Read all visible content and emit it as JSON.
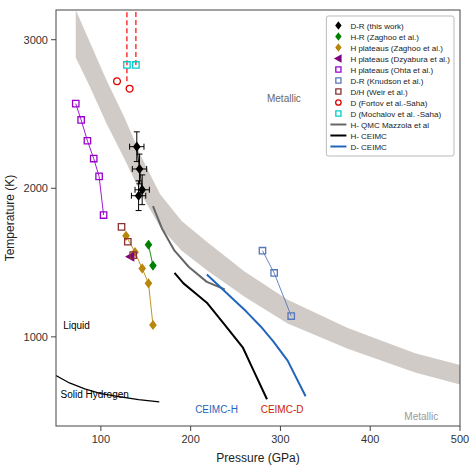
{
  "chart_data": {
    "type": "scatter",
    "xlabel": "Pressure (GPa)",
    "ylabel": "Temperature (K)",
    "xlim": [
      50,
      500
    ],
    "ylim": [
      400,
      3200
    ],
    "xticks": [
      100,
      200,
      300,
      400,
      500
    ],
    "yticks": [
      1000,
      2000,
      3000
    ],
    "grid": false,
    "legend": "upper right",
    "series": [
      {
        "name": "D-R (this work)",
        "type": "line",
        "marker": "diamond",
        "line_style": "solid",
        "color": "black",
        "x": [
          140,
          143,
          146,
          142
        ],
        "values": [
          2280,
          2130,
          1990,
          1950
        ],
        "xerr": [
          8,
          8,
          8,
          8
        ],
        "yerr": [
          100,
          100,
          100,
          100
        ]
      },
      {
        "name": "H-R (Zaghoo et al.)",
        "type": "line",
        "marker": "diamond",
        "line_style": "solid",
        "color": "#008000",
        "x": [
          153,
          158
        ],
        "values": [
          1620,
          1480
        ]
      },
      {
        "name": "H plateaus (Zaghoo et al.)",
        "type": "line",
        "marker": "diamond",
        "line_style": "solid",
        "color": "#b8860b",
        "x": [
          128,
          138,
          146,
          153,
          158
        ],
        "values": [
          1680,
          1570,
          1460,
          1360,
          1080
        ]
      },
      {
        "name": "H plateaus (Dzyabura et al.)",
        "type": "scatter",
        "marker": "triangle-left",
        "color": "#800080",
        "x": [
          133
        ],
        "values": [
          1540
        ]
      },
      {
        "name": "H plateaus (Ohta et al.)",
        "type": "line",
        "marker": "open-square",
        "line_style": "solid",
        "color": "#9900cc",
        "x": [
          72,
          78,
          85,
          92,
          98,
          103
        ],
        "values": [
          2570,
          2460,
          2320,
          2200,
          2080,
          1820
        ]
      },
      {
        "name": "D-R (Knudson et al.)",
        "type": "line",
        "marker": "open-square",
        "line_style": "solid",
        "color": "#5577bb",
        "x": [
          280,
          293,
          312
        ],
        "values": [
          1580,
          1430,
          1140
        ]
      },
      {
        "name": "D/H (Weir et al.)",
        "type": "scatter",
        "marker": "open-square",
        "color": "#8b3030",
        "x": [
          123,
          130,
          136
        ],
        "values": [
          1740,
          1640,
          1550
        ]
      },
      {
        "name": "D (Fortov et al.-Saha)",
        "type": "scatter",
        "marker": "open-circle",
        "color": "#dd0000",
        "x": [
          118,
          132
        ],
        "values": [
          2720,
          2670
        ]
      },
      {
        "name": "D (Mochalov et al. -Saha)",
        "type": "scatter",
        "marker": "open-square",
        "color": "#00cccc",
        "x": [
          129,
          139
        ],
        "values": [
          2830,
          2830
        ]
      },
      {
        "name": "H- QMC Mazzola et al",
        "type": "line",
        "line_style": "solid",
        "color": "#666666",
        "x": [
          158,
          168,
          182,
          198,
          218,
          238
        ],
        "values": [
          1880,
          1730,
          1580,
          1470,
          1370,
          1320
        ]
      },
      {
        "name": "H- CEIMC",
        "type": "line",
        "line_style": "solid",
        "color": "black",
        "x": [
          182,
          192,
          208,
          218,
          238,
          258,
          268,
          285
        ],
        "values": [
          1430,
          1360,
          1280,
          1230,
          1080,
          930,
          800,
          580
        ]
      },
      {
        "name": "D- CEIMC",
        "type": "line",
        "line_style": "solid",
        "color": "#2266bb",
        "x": [
          218,
          232,
          248,
          262,
          278,
          292,
          308,
          328
        ],
        "values": [
          1420,
          1340,
          1250,
          1170,
          1070,
          970,
          840,
          600
        ]
      },
      {
        "type": "area",
        "color": "#aaa098",
        "x": [
          72,
          88,
          106,
          126,
          146,
          166,
          190,
          220,
          260,
          308,
          375,
          450,
          500
        ],
        "values": [
          3200,
          2980,
          2730,
          2480,
          2200,
          1960,
          1780,
          1630,
          1440,
          1250,
          1060,
          890,
          810
        ],
        "lower": [
          2880,
          2680,
          2440,
          2200,
          1950,
          1740,
          1580,
          1440,
          1270,
          1090,
          920,
          760,
          680
        ]
      },
      {
        "type": "line",
        "line_style": "solid",
        "color": "black",
        "x": [
          50,
          65,
          82,
          100,
          122,
          142,
          165
        ],
        "values": [
          740,
          690,
          650,
          618,
          596,
          578,
          562
        ]
      },
      {
        "type": "line",
        "line_style": "dashed",
        "color": "#ff0000",
        "x": [
          129,
          129
        ],
        "values": [
          2720,
          3200
        ]
      },
      {
        "type": "line",
        "line_style": "dashed",
        "color": "#ff0000",
        "x": [
          139,
          139
        ],
        "values": [
          2830,
          3200
        ]
      }
    ],
    "annotations": [
      {
        "text": "Metallic",
        "x": 285,
        "y": 2580,
        "color": "#666666"
      },
      {
        "text": "Liquid",
        "x": 58,
        "y": 1050,
        "color": "black"
      },
      {
        "text": "Solid Hydrogen",
        "x": 55,
        "y": 590,
        "color": "black"
      },
      {
        "text": "CEIMC-H",
        "x": 205,
        "y": 490,
        "color": "#2266bb"
      },
      {
        "text": "CEIMC-D",
        "x": 278,
        "y": 490,
        "color": "#cc2200"
      },
      {
        "text": "Metallic",
        "x": 438,
        "y": 440,
        "color": "#999999"
      }
    ]
  }
}
